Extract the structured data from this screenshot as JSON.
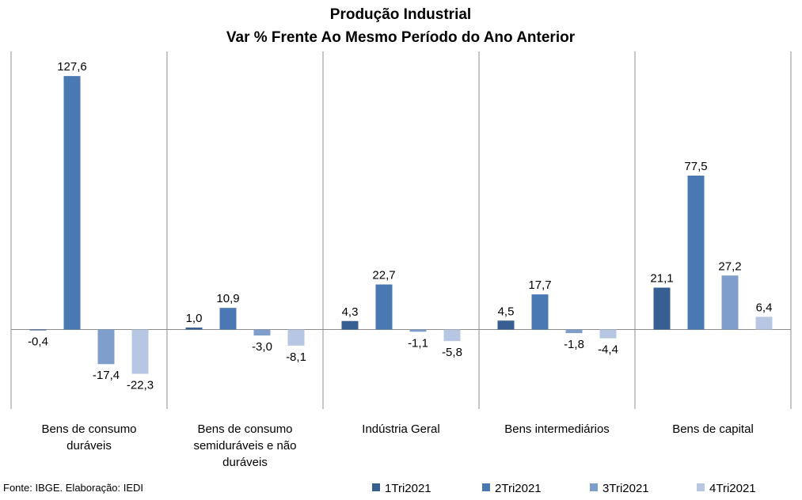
{
  "chart_data": {
    "type": "bar",
    "title": "Produção Industrial",
    "subtitle": "Var % Frente Ao Mesmo Período do Ano Anterior",
    "categories": [
      [
        "Bens de consumo",
        "duráveis"
      ],
      [
        "Bens de consumo",
        "semiduráveis e não",
        "duráveis"
      ],
      [
        "Indústria Geral"
      ],
      [
        "Bens intermediários"
      ],
      [
        "Bens de capital"
      ]
    ],
    "series": [
      {
        "name": "1Tri2021",
        "values": [
          -0.4,
          1.0,
          4.3,
          4.5,
          21.1
        ],
        "labels": [
          "-0,4",
          "1,0",
          "4,3",
          "4,5",
          "21,1"
        ],
        "color": "#375f92"
      },
      {
        "name": "2Tri2021",
        "values": [
          127.6,
          10.9,
          22.7,
          17.7,
          77.5
        ],
        "labels": [
          "127,6",
          "10,9",
          "22,7",
          "17,7",
          "77,5"
        ],
        "color": "#4a78b3"
      },
      {
        "name": "3Tri2021",
        "values": [
          -17.4,
          -3.0,
          -1.1,
          -1.8,
          27.2
        ],
        "labels": [
          "-17,4",
          "-3,0",
          "-1,1",
          "-1,8",
          "27,2"
        ],
        "color": "#7f9ecb"
      },
      {
        "name": "4Tri2021",
        "values": [
          -22.3,
          -8.1,
          -5.8,
          -4.4,
          6.4
        ],
        "labels": [
          "-22,3",
          "-8,1",
          "-5,8",
          "-4,4",
          "6,4"
        ],
        "color": "#b7c7e3"
      }
    ],
    "ylim": [
      -40,
      140
    ],
    "grid": false,
    "legend_position": "bottom-right"
  },
  "footer": {
    "source": "Fonte: IBGE. Elaboração: IEDI"
  }
}
